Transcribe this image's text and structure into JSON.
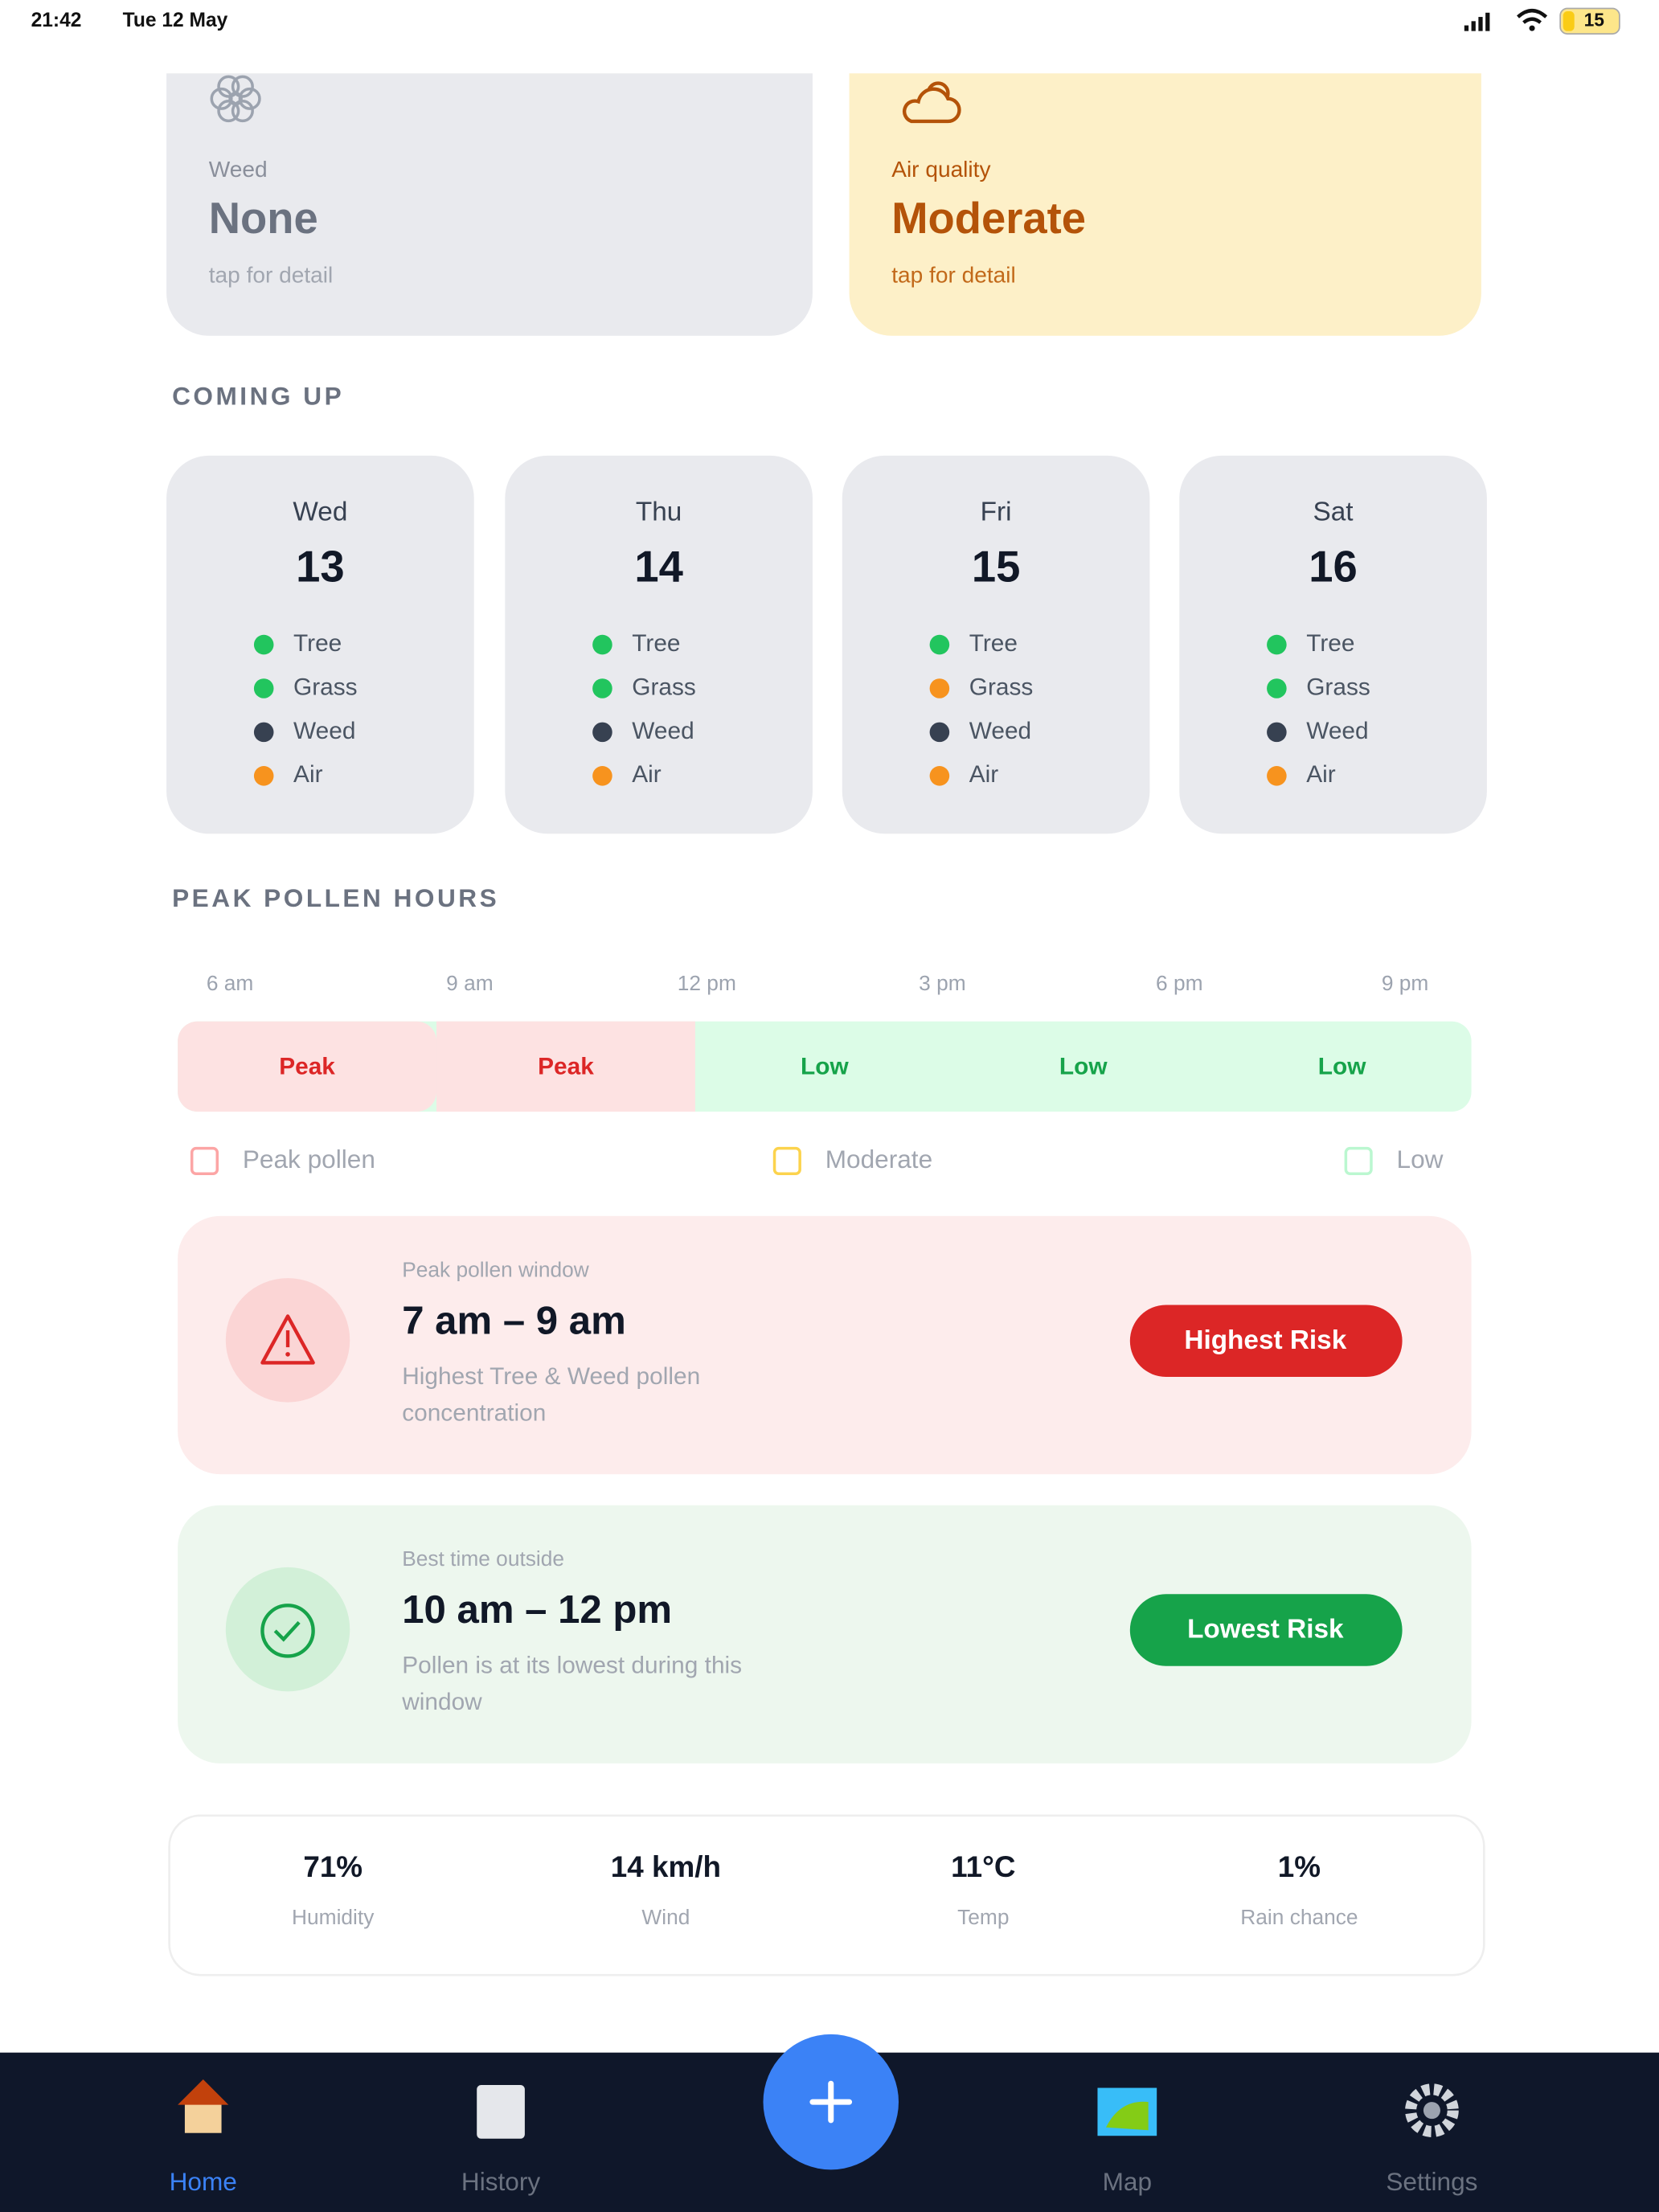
{
  "status_bar": {
    "time": "21:42",
    "date": "Tue 12 May",
    "battery": "15"
  },
  "summary_cards": [
    {
      "label": "Weed",
      "value": "None",
      "hint": "tap for detail"
    },
    {
      "label": "Air quality",
      "value": "Moderate",
      "hint": "tap for detail"
    }
  ],
  "coming_up": {
    "title": "COMING UP",
    "days": [
      {
        "day": "Wed",
        "date": "13",
        "items": [
          {
            "name": "Tree",
            "color": "#22c55e"
          },
          {
            "name": "Grass",
            "color": "#22c55e"
          },
          {
            "name": "Weed",
            "color": "#374151"
          },
          {
            "name": "Air",
            "color": "#f7931e"
          }
        ]
      },
      {
        "day": "Thu",
        "date": "14",
        "items": [
          {
            "name": "Tree",
            "color": "#22c55e"
          },
          {
            "name": "Grass",
            "color": "#22c55e"
          },
          {
            "name": "Weed",
            "color": "#374151"
          },
          {
            "name": "Air",
            "color": "#f7931e"
          }
        ]
      },
      {
        "day": "Fri",
        "date": "15",
        "items": [
          {
            "name": "Tree",
            "color": "#22c55e"
          },
          {
            "name": "Grass",
            "color": "#f7931e"
          },
          {
            "name": "Weed",
            "color": "#374151"
          },
          {
            "name": "Air",
            "color": "#f7931e"
          }
        ]
      },
      {
        "day": "Sat",
        "date": "16",
        "items": [
          {
            "name": "Tree",
            "color": "#22c55e"
          },
          {
            "name": "Grass",
            "color": "#22c55e"
          },
          {
            "name": "Weed",
            "color": "#374151"
          },
          {
            "name": "Air",
            "color": "#f7931e"
          }
        ]
      }
    ]
  },
  "peak_hours": {
    "title": "PEAK POLLEN HOURS",
    "times": [
      "6 am",
      "9 am",
      "12 pm",
      "3 pm",
      "6 pm",
      "9 pm"
    ],
    "segments": [
      {
        "label": "Peak",
        "level": "peak"
      },
      {
        "label": "Peak",
        "level": "peak"
      },
      {
        "label": "Low",
        "level": "low"
      },
      {
        "label": "Low",
        "level": "low"
      },
      {
        "label": "Low",
        "level": "low"
      }
    ],
    "legend": [
      {
        "label": "Peak pollen",
        "color": "#fca5a5"
      },
      {
        "label": "Moderate",
        "color": "#fcd34d"
      },
      {
        "label": "Low",
        "color": "#bbf7d0"
      }
    ]
  },
  "alerts": [
    {
      "caption": "Peak pollen window",
      "time": "7 am – 9 am",
      "description": "Highest Tree & Weed pollen concentration",
      "badge": "Highest Risk",
      "kind": "risk"
    },
    {
      "caption": "Best time outside",
      "time": "10 am – 12 pm",
      "description": "Pollen is at its lowest during this window",
      "badge": "Lowest Risk",
      "kind": "safe"
    }
  ],
  "weather": [
    {
      "value": "71%",
      "label": "Humidity"
    },
    {
      "value": "14 km/h",
      "label": "Wind"
    },
    {
      "value": "11°C",
      "label": "Temp"
    },
    {
      "value": "1%",
      "label": "Rain chance"
    }
  ],
  "nav": {
    "items": [
      {
        "label": "Home",
        "active": true
      },
      {
        "label": "History",
        "active": false
      },
      {
        "label": "Map",
        "active": false
      },
      {
        "label": "Settings",
        "active": false
      }
    ]
  }
}
